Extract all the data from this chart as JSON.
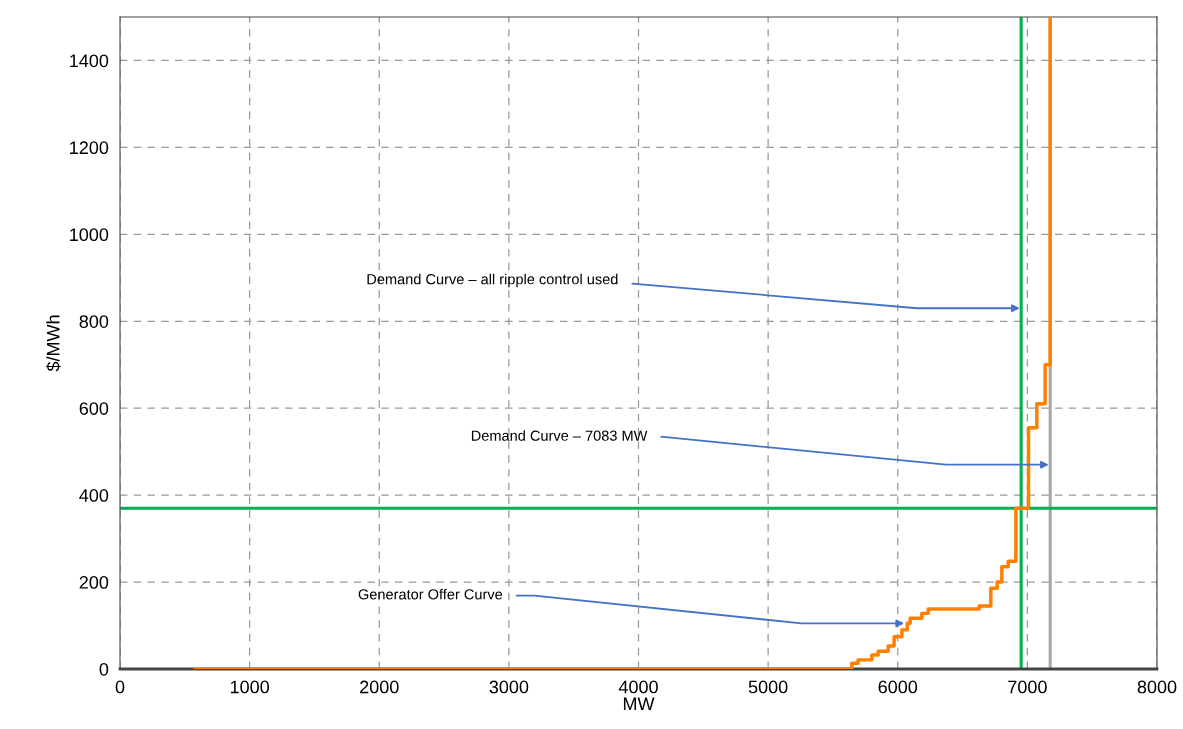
{
  "chart_data": {
    "type": "step",
    "xlabel": "MW",
    "ylabel": "$/MWh",
    "series": [
      {
        "color": "#ff7f00",
        "x": [
          580,
          5646,
          5694,
          5800,
          5849,
          5926,
          5972,
          6032,
          6073,
          6096,
          6186,
          6235,
          6628,
          6718,
          6767,
          6803,
          6852,
          6911,
          7009,
          7073,
          7137,
          7176
        ],
        "values": [
          0,
          13,
          21,
          32,
          41,
          53,
          74,
          90,
          105,
          117,
          128,
          138,
          145,
          186,
          200,
          235,
          248,
          370,
          555,
          610,
          700,
          1500
        ]
      }
    ],
    "ref_lines": [
      {
        "axis": "x",
        "value": 7176,
        "color": "#a6a6a6"
      },
      {
        "axis": "x",
        "value": 6952,
        "color": "#00b050"
      },
      {
        "axis": "y",
        "value": 370,
        "color": "#00b050"
      }
    ],
    "annotations": [
      {
        "text": "Demand Curve – all ripple control used",
        "x": 6952,
        "y": 830
      },
      {
        "text": "Demand Curve – 7083 MW",
        "x": 7176,
        "y": 470
      },
      {
        "text": "Generator Offer Curve",
        "x": 6060,
        "y": 105
      }
    ],
    "xlim": [
      0,
      8000
    ],
    "ylim": [
      0,
      1500
    ],
    "xticks": [
      0,
      1000,
      2000,
      3000,
      4000,
      5000,
      6000,
      7000,
      8000
    ],
    "yticks": [
      0,
      200,
      400,
      600,
      800,
      1000,
      1200,
      1400
    ],
    "grid": true,
    "line_style": "solid",
    "marker": "none"
  }
}
